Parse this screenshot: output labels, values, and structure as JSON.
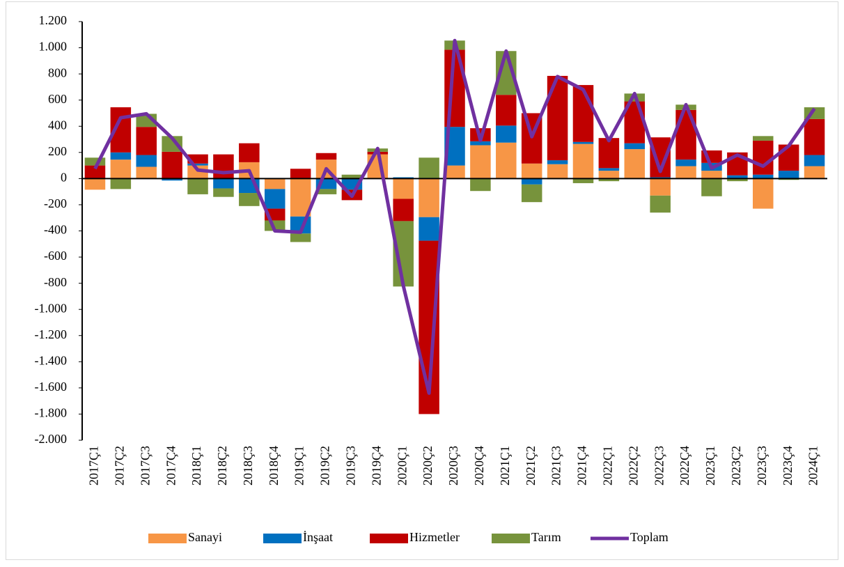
{
  "chart_data": {
    "type": "bar",
    "stacked": true,
    "categories": [
      "2017Ç1",
      "2017Ç2",
      "2017Ç3",
      "2017Ç4",
      "2018Ç1",
      "2018Ç2",
      "2018Ç3",
      "2018Ç4",
      "2019Ç1",
      "2019Ç2",
      "2019Ç3",
      "2019Ç4",
      "2020Ç1",
      "2020Ç2",
      "2020Ç3",
      "2020Ç4",
      "2021Ç1",
      "2021Ç2",
      "2021Ç3",
      "2021Ç4",
      "2022Ç1",
      "2022Ç2",
      "2022Ç3",
      "2022Ç4",
      "2023Ç1",
      "2023Ç2",
      "2023Ç3",
      "2023Ç4",
      "2024Ç1"
    ],
    "series": [
      {
        "name": "Sanayi",
        "color": "#f79646",
        "values": [
          -85,
          145,
          90,
          0,
          100,
          0,
          125,
          -80,
          -290,
          145,
          0,
          185,
          -155,
          -295,
          100,
          255,
          275,
          115,
          110,
          265,
          60,
          225,
          -130,
          95,
          60,
          0,
          -230,
          0,
          95
        ]
      },
      {
        "name": "İnşaat",
        "color": "#0070c0",
        "values": [
          0,
          55,
          90,
          -15,
          15,
          -75,
          -110,
          -150,
          -130,
          -80,
          -85,
          0,
          10,
          -180,
          295,
          30,
          130,
          -45,
          30,
          15,
          20,
          45,
          10,
          50,
          60,
          25,
          30,
          60,
          85
        ]
      },
      {
        "name": "Hizmetler",
        "color": "#c00000",
        "values": [
          100,
          345,
          215,
          205,
          70,
          185,
          145,
          -90,
          75,
          50,
          -80,
          20,
          -170,
          -1325,
          590,
          100,
          235,
          385,
          645,
          435,
          230,
          320,
          305,
          380,
          95,
          175,
          260,
          200,
          275
        ]
      },
      {
        "name": "Tarım",
        "color": "#77933c",
        "values": [
          60,
          -80,
          100,
          120,
          -120,
          -65,
          -100,
          -80,
          -65,
          -40,
          30,
          25,
          -500,
          160,
          70,
          -95,
          335,
          -135,
          -5,
          -35,
          -20,
          60,
          -130,
          40,
          -135,
          -20,
          35,
          -10,
          90
        ]
      },
      {
        "name": "Toplam",
        "color": "#7030a0",
        "type": "line",
        "values": [
          75,
          465,
          495,
          310,
          65,
          45,
          60,
          -400,
          -410,
          75,
          -135,
          230,
          -820,
          -1640,
          1055,
          290,
          975,
          320,
          780,
          680,
          290,
          650,
          55,
          565,
          80,
          180,
          95,
          250,
          535
        ]
      }
    ],
    "ylim": [
      -2000,
      1200
    ],
    "yticks": [
      {
        "value": -2000,
        "label": "-2.000"
      },
      {
        "value": -1800,
        "label": "-1.800"
      },
      {
        "value": -1600,
        "label": "-1.600"
      },
      {
        "value": -1400,
        "label": "-1.400"
      },
      {
        "value": -1200,
        "label": "-1.200"
      },
      {
        "value": -1000,
        "label": "-1.000"
      },
      -800,
      -600,
      -400,
      -200,
      0,
      200,
      400,
      600,
      800,
      {
        "value": 1000,
        "label": "1.000"
      },
      {
        "value": 1200,
        "label": "1.200"
      }
    ],
    "grid": false,
    "legend": "bottom"
  }
}
